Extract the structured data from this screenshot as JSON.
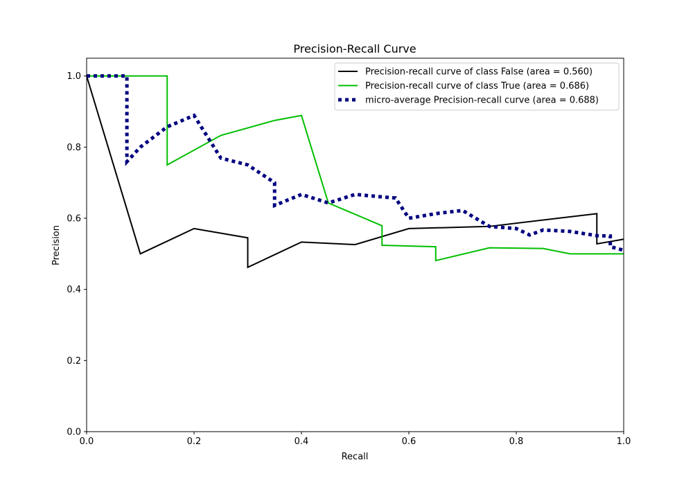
{
  "chart_data": {
    "type": "line",
    "title": "Precision-Recall Curve",
    "xlabel": "Recall",
    "ylabel": "Precision",
    "xlim": [
      0.0,
      1.0
    ],
    "ylim": [
      0.0,
      1.05
    ],
    "xticks": [
      0.0,
      0.2,
      0.4,
      0.6,
      0.8,
      1.0
    ],
    "yticks": [
      0.0,
      0.2,
      0.4,
      0.6,
      0.8,
      1.0
    ],
    "xtick_labels": [
      "0.0",
      "0.2",
      "0.4",
      "0.6",
      "0.8",
      "1.0"
    ],
    "ytick_labels": [
      "0.0",
      "0.2",
      "0.4",
      "0.6",
      "0.8",
      "1.0"
    ],
    "grid": false,
    "legend_position": "upper right",
    "series": [
      {
        "name": "Precision-recall curve of class False (area = 0.560)",
        "color": "#000000",
        "style": "solid",
        "x": [
          0.0,
          0.1,
          0.2,
          0.3,
          0.3,
          0.4,
          0.5,
          0.6,
          0.75,
          0.95,
          0.95,
          1.0
        ],
        "y": [
          1.0,
          0.5,
          0.571,
          0.545,
          0.462,
          0.533,
          0.526,
          0.571,
          0.577,
          0.613,
          0.528,
          0.541
        ]
      },
      {
        "name": "Precision-recall curve of class True (area = 0.686)",
        "color": "#00bf00",
        "style": "solid",
        "x": [
          0.0,
          0.15,
          0.15,
          0.25,
          0.35,
          0.4,
          0.45,
          0.55,
          0.55,
          0.65,
          0.65,
          0.75,
          0.85,
          0.9,
          1.0
        ],
        "y": [
          1.0,
          1.0,
          0.75,
          0.833,
          0.875,
          0.889,
          0.643,
          0.579,
          0.524,
          0.52,
          0.481,
          0.517,
          0.515,
          0.5,
          0.5
        ]
      },
      {
        "name": "micro-average Precision-recall curve (area = 0.688)",
        "color": "#000080",
        "style": "dotted",
        "x": [
          0.0,
          0.025,
          0.05,
          0.075,
          0.075,
          0.1,
          0.15,
          0.2,
          0.25,
          0.3,
          0.35,
          0.35,
          0.4,
          0.45,
          0.5,
          0.55,
          0.575,
          0.6,
          0.65,
          0.7,
          0.75,
          0.8,
          0.825,
          0.85,
          0.9,
          0.95,
          0.975,
          0.975,
          1.0
        ],
        "y": [
          1.0,
          1.0,
          1.0,
          1.0,
          0.759,
          0.8,
          0.857,
          0.889,
          0.769,
          0.75,
          0.7,
          0.636,
          0.667,
          0.643,
          0.667,
          0.66,
          0.657,
          0.6,
          0.613,
          0.622,
          0.577,
          0.571,
          0.553,
          0.567,
          0.563,
          0.551,
          0.55,
          0.52,
          0.51
        ]
      }
    ]
  }
}
